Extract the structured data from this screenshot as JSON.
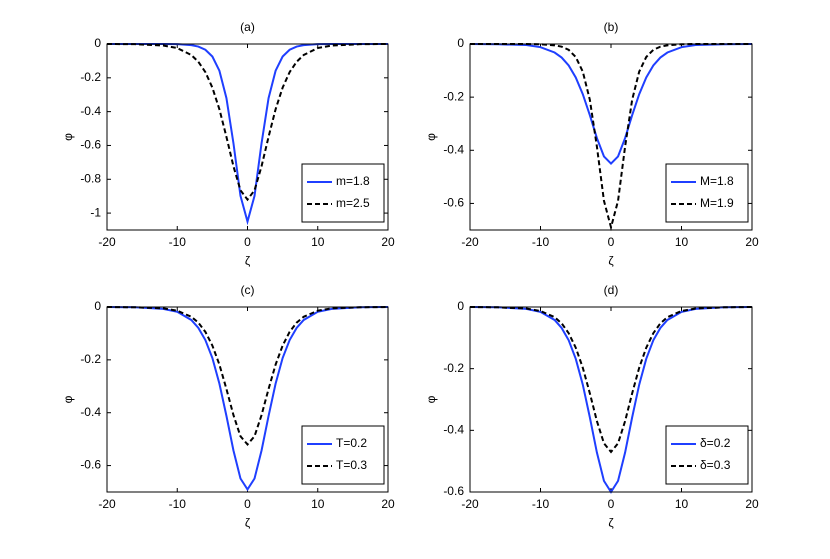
{
  "chart_data": [
    {
      "type": "line",
      "title": "(a)",
      "x_label": "ζ",
      "y_label": "φ",
      "x": [
        -20,
        -16,
        -12,
        -10,
        -8,
        -7,
        -6,
        -5,
        -4,
        -3,
        -2,
        -1,
        0,
        1,
        2,
        3,
        4,
        5,
        6,
        7,
        8,
        10,
        12,
        16,
        20
      ],
      "xlim": [
        -20,
        20
      ],
      "xticks": [
        -20,
        -10,
        0,
        10,
        20
      ],
      "ylim": [
        -1.1,
        0
      ],
      "yticks": [
        0,
        -0.2,
        -0.4,
        -0.6,
        -0.8,
        -1
      ],
      "legend_position": "lower right",
      "series": [
        {
          "name": "m=1.8",
          "color": "#1f3fff",
          "dash": "solid",
          "values": [
            0,
            0,
            0,
            -0.001,
            -0.007,
            -0.015,
            -0.034,
            -0.074,
            -0.158,
            -0.32,
            -0.587,
            -0.898,
            -1.05,
            -0.898,
            -0.587,
            -0.32,
            -0.158,
            -0.074,
            -0.034,
            -0.015,
            -0.007,
            -0.001,
            0,
            0,
            0
          ]
        },
        {
          "name": "m=2.5",
          "color": "#000000",
          "dash": "dashed",
          "values": [
            0,
            -0.001,
            -0.009,
            -0.024,
            -0.065,
            -0.105,
            -0.166,
            -0.258,
            -0.386,
            -0.549,
            -0.723,
            -0.865,
            -0.92,
            -0.865,
            -0.723,
            -0.549,
            -0.386,
            -0.258,
            -0.166,
            -0.105,
            -0.065,
            -0.024,
            -0.009,
            -0.001,
            0
          ]
        }
      ]
    },
    {
      "type": "line",
      "title": "(b)",
      "x_label": "ζ",
      "y_label": "φ",
      "x": [
        -20,
        -16,
        -12,
        -10,
        -8,
        -7,
        -6,
        -5,
        -4,
        -3,
        -2,
        -1,
        0,
        1,
        2,
        3,
        4,
        5,
        6,
        7,
        8,
        10,
        12,
        16,
        20
      ],
      "xlim": [
        -20,
        20
      ],
      "xticks": [
        -20,
        -10,
        0,
        10,
        20
      ],
      "ylim": [
        -0.7,
        0
      ],
      "yticks": [
        0,
        -0.2,
        -0.4,
        -0.6
      ],
      "legend_position": "lower right",
      "series": [
        {
          "name": "M=1.8",
          "color": "#1f3fff",
          "dash": "solid",
          "values": [
            0,
            -0.001,
            -0.004,
            -0.012,
            -0.032,
            -0.051,
            -0.081,
            -0.126,
            -0.189,
            -0.268,
            -0.354,
            -0.423,
            -0.45,
            -0.423,
            -0.354,
            -0.268,
            -0.189,
            -0.126,
            -0.081,
            -0.051,
            -0.032,
            -0.012,
            -0.004,
            -0.001,
            0
          ]
        },
        {
          "name": "M=1.9",
          "color": "#000000",
          "dash": "dashed",
          "values": [
            0,
            0,
            0,
            -0.001,
            -0.005,
            -0.01,
            -0.022,
            -0.049,
            -0.104,
            -0.21,
            -0.386,
            -0.59,
            -0.69,
            -0.59,
            -0.386,
            -0.21,
            -0.104,
            -0.049,
            -0.022,
            -0.01,
            -0.005,
            -0.001,
            0,
            0,
            0
          ]
        }
      ]
    },
    {
      "type": "line",
      "title": "(c)",
      "x_label": "ζ",
      "y_label": "φ",
      "x": [
        -20,
        -16,
        -12,
        -10,
        -8,
        -7,
        -6,
        -5,
        -4,
        -3,
        -2,
        -1,
        0,
        1,
        2,
        3,
        4,
        5,
        6,
        7,
        8,
        10,
        12,
        16,
        20
      ],
      "xlim": [
        -20,
        20
      ],
      "xticks": [
        -20,
        -10,
        0,
        10,
        20
      ],
      "ylim": [
        -0.7,
        0
      ],
      "yticks": [
        0,
        -0.2,
        -0.4,
        -0.6
      ],
      "legend_position": "lower right",
      "series": [
        {
          "name": "T=0.2",
          "color": "#1f3fff",
          "dash": "solid",
          "values": [
            0,
            -0.001,
            -0.007,
            -0.018,
            -0.049,
            -0.079,
            -0.125,
            -0.193,
            -0.29,
            -0.412,
            -0.543,
            -0.649,
            -0.69,
            -0.649,
            -0.543,
            -0.412,
            -0.29,
            -0.193,
            -0.125,
            -0.079,
            -0.049,
            -0.018,
            -0.007,
            -0.001,
            0
          ]
        },
        {
          "name": "T=0.3",
          "color": "#000000",
          "dash": "dashed",
          "values": [
            0,
            -0.001,
            -0.005,
            -0.014,
            -0.037,
            -0.059,
            -0.094,
            -0.146,
            -0.218,
            -0.31,
            -0.409,
            -0.489,
            -0.52,
            -0.489,
            -0.409,
            -0.31,
            -0.218,
            -0.146,
            -0.094,
            -0.059,
            -0.037,
            -0.014,
            -0.005,
            -0.001,
            0
          ]
        }
      ]
    },
    {
      "type": "line",
      "title": "(d)",
      "x_label": "ζ",
      "y_label": "φ",
      "x": [
        -20,
        -16,
        -12,
        -10,
        -8,
        -7,
        -6,
        -5,
        -4,
        -3,
        -2,
        -1,
        0,
        1,
        2,
        3,
        4,
        5,
        6,
        7,
        8,
        10,
        12,
        16,
        20
      ],
      "xlim": [
        -20,
        20
      ],
      "xticks": [
        -20,
        -10,
        0,
        10,
        20
      ],
      "ylim": [
        -0.6,
        0
      ],
      "yticks": [
        0,
        -0.2,
        -0.4,
        -0.6
      ],
      "legend_position": "lower right",
      "series": [
        {
          "name": "δ=0.2",
          "color": "#1f3fff",
          "dash": "solid",
          "values": [
            0,
            -0.001,
            -0.006,
            -0.016,
            -0.042,
            -0.068,
            -0.108,
            -0.168,
            -0.252,
            -0.358,
            -0.472,
            -0.564,
            -0.6,
            -0.564,
            -0.472,
            -0.358,
            -0.252,
            -0.168,
            -0.108,
            -0.068,
            -0.042,
            -0.016,
            -0.006,
            -0.001,
            0
          ]
        },
        {
          "name": "δ=0.3",
          "color": "#000000",
          "dash": "dashed",
          "values": [
            0,
            -0.001,
            -0.005,
            -0.013,
            -0.033,
            -0.053,
            -0.085,
            -0.132,
            -0.197,
            -0.28,
            -0.37,
            -0.442,
            -0.47,
            -0.442,
            -0.37,
            -0.28,
            -0.197,
            -0.132,
            -0.085,
            -0.053,
            -0.033,
            -0.013,
            -0.005,
            -0.001,
            0
          ]
        }
      ]
    }
  ]
}
